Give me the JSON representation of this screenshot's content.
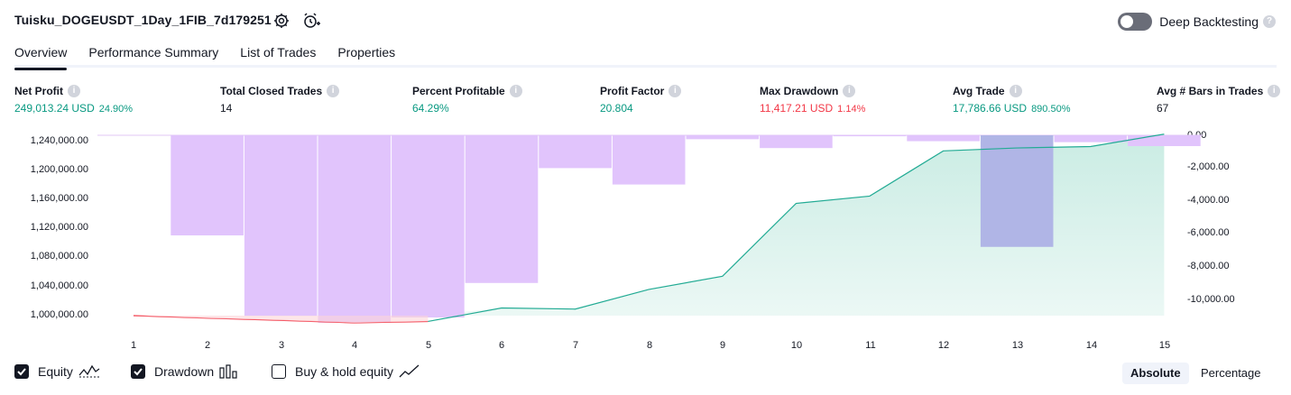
{
  "header": {
    "title": "Tuisku_DOGEUSDT_1Day_1FIB_7d179251",
    "deep_backtesting_label": "Deep Backtesting",
    "deep_backtesting_enabled": false
  },
  "tabs": [
    {
      "label": "Overview",
      "active": true
    },
    {
      "label": "Performance Summary",
      "active": false
    },
    {
      "label": "List of Trades",
      "active": false
    },
    {
      "label": "Properties",
      "active": false
    }
  ],
  "metrics": [
    {
      "label": "Net Profit",
      "value": "249,013.24 USD",
      "pct": "24.90%",
      "color": "#089981"
    },
    {
      "label": "Total Closed Trades",
      "value": "14",
      "pct": "",
      "color": "#131722"
    },
    {
      "label": "Percent Profitable",
      "value": "64.29%",
      "pct": "",
      "color": "#089981"
    },
    {
      "label": "Profit Factor",
      "value": "20.804",
      "pct": "",
      "color": "#089981"
    },
    {
      "label": "Max Drawdown",
      "value": "11,417.21 USD",
      "pct": "1.14%",
      "color": "#f23645"
    },
    {
      "label": "Avg Trade",
      "value": "17,786.66 USD",
      "pct": "890.50%",
      "color": "#089981"
    },
    {
      "label": "Avg # Bars in Trades",
      "value": "67",
      "pct": "",
      "color": "#131722"
    }
  ],
  "legend": {
    "equity_label": "Equity",
    "equity_checked": true,
    "drawdown_label": "Drawdown",
    "drawdown_checked": true,
    "buyhold_label": "Buy & hold equity",
    "buyhold_checked": false
  },
  "scale_toggle": {
    "absolute_label": "Absolute",
    "percentage_label": "Percentage",
    "selected": "Absolute"
  },
  "colors": {
    "equity_line": "#22ab94",
    "equity_negative_line": "#f23645",
    "equity_fill": "#c7ebe2",
    "drawdown_bar": "#e1c4fc",
    "drawdown_bar_highlight": "#b0b5e6"
  },
  "chart_data": {
    "type": "area",
    "x": [
      1,
      2,
      3,
      4,
      5,
      6,
      7,
      8,
      9,
      10,
      11,
      12,
      13,
      14,
      15
    ],
    "left_axis_ticks": [
      "1,240,000.00",
      "1,200,000.00",
      "1,160,000.00",
      "1,120,000.00",
      "1,080,000.00",
      "1,040,000.00",
      "1,000,000.00"
    ],
    "right_axis_ticks": [
      "0.00",
      "-2,000.00",
      "-4,000.00",
      "-6,000.00",
      "-8,000.00",
      "-10,000.00"
    ],
    "ylim_left": [
      988000,
      1250000
    ],
    "ylim_right": [
      -11600,
      0
    ],
    "series": [
      {
        "name": "Equity",
        "axis": "left",
        "values": [
          1000000,
          996500,
          993500,
          990000,
          992000,
          1010500,
          1009000,
          1036000,
          1054000,
          1154000,
          1164000,
          1226000,
          1230000,
          1232000,
          1249000
        ]
      },
      {
        "name": "Drawdown",
        "axis": "right",
        "values": [
          0,
          -6100,
          -11000,
          -11417,
          -11100,
          -9000,
          -2000,
          -3000,
          -240,
          -780,
          -60,
          -360,
          -6800,
          -420,
          -660
        ]
      }
    ]
  }
}
